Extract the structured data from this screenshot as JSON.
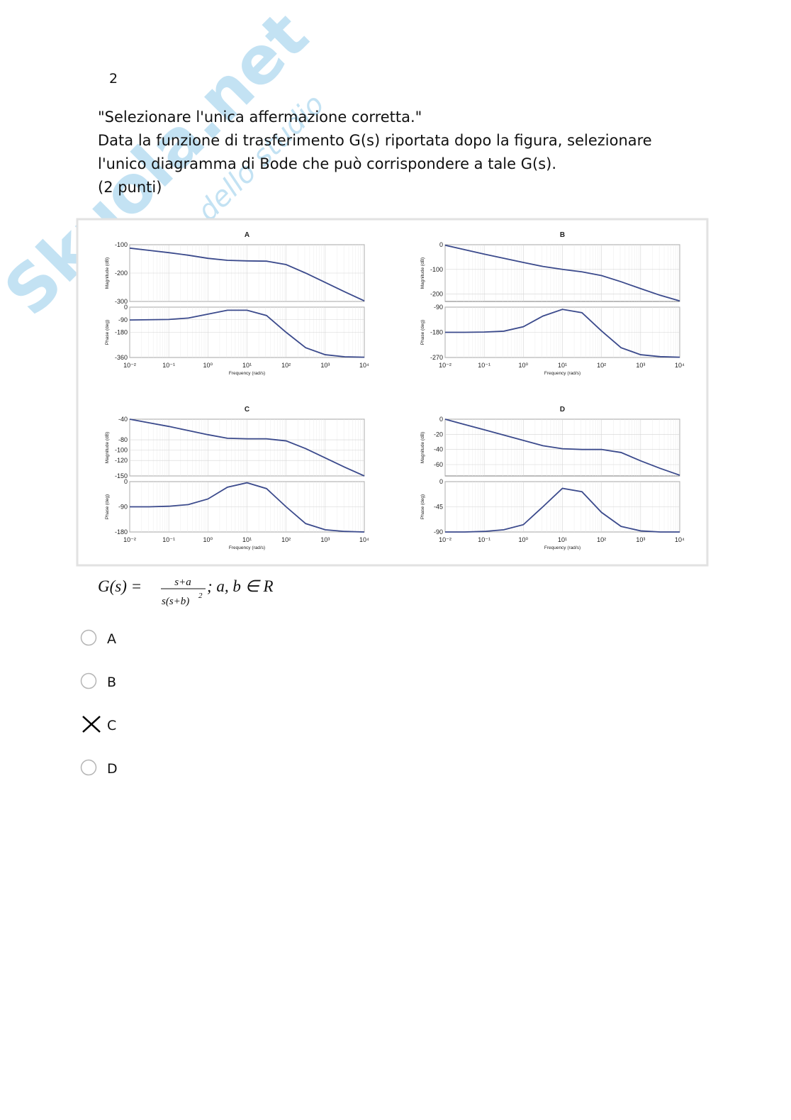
{
  "page_number": "2",
  "question": {
    "lines": [
      "\"Selezionare l'unica affermazione corretta.\"",
      "Data la funzione di trasferimento G(s) riportata dopo la figura, selezionare",
      "l'unico diagramma di Bode che può corrispondere a tale G(s).",
      "(2 punti)"
    ]
  },
  "watermark": {
    "brand": "Skuola.net",
    "tagline": "il paradiso dello studio"
  },
  "chart_data": [
    {
      "type": "line",
      "title": "A",
      "ylabel": "Magnitude (dB)",
      "xscale": "log",
      "xlim": [
        0.01,
        10000
      ],
      "x": [
        0.01,
        0.0316,
        0.1,
        0.316,
        1,
        3.16,
        10,
        31.6,
        100,
        316,
        1000,
        3162,
        10000
      ],
      "ylim": [
        -300,
        -100
      ],
      "yticks": [
        -100,
        -200,
        -300
      ],
      "grid": true,
      "series": [
        {
          "color": "#3b4a8c",
          "values": [
            -112,
            -120,
            -128,
            -137,
            -148,
            -155,
            -157,
            -158,
            -170,
            -200,
            -233,
            -266,
            -298
          ]
        }
      ]
    },
    {
      "type": "line",
      "ylabel": "Phase (deg)",
      "xlabel": "Frequency (rad/s)",
      "xscale": "log",
      "xlim": [
        0.01,
        10000
      ],
      "x": [
        0.01,
        0.0316,
        0.1,
        0.316,
        1,
        3.16,
        10,
        31.6,
        100,
        316,
        1000,
        3162,
        10000
      ],
      "xticks": [
        {
          "value": 0.01,
          "label": "10⁻²"
        },
        {
          "value": 0.1,
          "label": "10⁻¹"
        },
        {
          "value": 1,
          "label": "10⁰"
        },
        {
          "value": 10,
          "label": "10¹"
        },
        {
          "value": 100,
          "label": "10²"
        },
        {
          "value": 1000,
          "label": "10³"
        },
        {
          "value": 10000,
          "label": "10⁴"
        }
      ],
      "ylim": [
        -360,
        0
      ],
      "yticks": [
        0,
        -90,
        -180,
        -360
      ],
      "grid": true,
      "series": [
        {
          "color": "#3b4a8c",
          "values": [
            -92,
            -90,
            -88,
            -78,
            -50,
            -22,
            -22,
            -60,
            -180,
            -290,
            -340,
            -355,
            -358
          ]
        }
      ]
    },
    {
      "type": "line",
      "title": "B",
      "ylabel": "Magnitude (dB)",
      "xscale": "log",
      "xlim": [
        0.01,
        10000
      ],
      "x": [
        0.01,
        0.0316,
        0.1,
        0.316,
        1,
        3.16,
        10,
        31.6,
        100,
        316,
        1000,
        3162,
        10000
      ],
      "ylim": [
        -230,
        0
      ],
      "yticks": [
        0,
        -100,
        -200
      ],
      "grid": true,
      "series": [
        {
          "color": "#3b4a8c",
          "values": [
            -2,
            -20,
            -38,
            -55,
            -72,
            -88,
            -100,
            -110,
            -125,
            -150,
            -178,
            -205,
            -228
          ]
        }
      ]
    },
    {
      "type": "line",
      "ylabel": "Phase (deg)",
      "xlabel": "Frequency (rad/s)",
      "xscale": "log",
      "xlim": [
        0.01,
        10000
      ],
      "x": [
        0.01,
        0.0316,
        0.1,
        0.316,
        1,
        3.16,
        10,
        31.6,
        100,
        316,
        1000,
        3162,
        10000
      ],
      "xticks": [
        {
          "value": 0.01,
          "label": "10⁻²"
        },
        {
          "value": 0.1,
          "label": "10⁻¹"
        },
        {
          "value": 1,
          "label": "10⁰"
        },
        {
          "value": 10,
          "label": "10¹"
        },
        {
          "value": 100,
          "label": "10²"
        },
        {
          "value": 1000,
          "label": "10³"
        },
        {
          "value": 10000,
          "label": "10⁴"
        }
      ],
      "ylim": [
        -270,
        -90
      ],
      "yticks": [
        -90,
        -180,
        -270
      ],
      "grid": true,
      "series": [
        {
          "color": "#3b4a8c",
          "values": [
            -180,
            -180,
            -179,
            -176,
            -160,
            -122,
            -98,
            -110,
            -175,
            -235,
            -260,
            -267,
            -269
          ]
        }
      ]
    },
    {
      "type": "line",
      "title": "C",
      "ylabel": "Magnitude (dB)",
      "xscale": "log",
      "xlim": [
        0.01,
        10000
      ],
      "x": [
        0.01,
        0.0316,
        0.1,
        0.316,
        1,
        3.16,
        10,
        31.6,
        100,
        316,
        1000,
        3162,
        10000
      ],
      "ylim": [
        -150,
        -40
      ],
      "yticks": [
        -40,
        -80,
        -100,
        -120,
        -150
      ],
      "grid": true,
      "series": [
        {
          "color": "#3b4a8c",
          "values": [
            -40,
            -47,
            -54,
            -62,
            -70,
            -77,
            -78,
            -78,
            -82,
            -97,
            -115,
            -133,
            -150
          ]
        }
      ]
    },
    {
      "type": "line",
      "ylabel": "Phase (deg)",
      "xlabel": "Frequency (rad/s)",
      "xscale": "log",
      "xlim": [
        0.01,
        10000
      ],
      "x": [
        0.01,
        0.0316,
        0.1,
        0.316,
        1,
        3.16,
        10,
        31.6,
        100,
        316,
        1000,
        3162,
        10000
      ],
      "xticks": [
        {
          "value": 0.01,
          "label": "10⁻²"
        },
        {
          "value": 0.1,
          "label": "10⁻¹"
        },
        {
          "value": 1,
          "label": "10⁰"
        },
        {
          "value": 10,
          "label": "10¹"
        },
        {
          "value": 100,
          "label": "10²"
        },
        {
          "value": 1000,
          "label": "10³"
        },
        {
          "value": 10000,
          "label": "10⁴"
        }
      ],
      "ylim": [
        -180,
        0
      ],
      "yticks": [
        0,
        -90,
        -180
      ],
      "grid": true,
      "series": [
        {
          "color": "#3b4a8c",
          "values": [
            -90,
            -90,
            -88,
            -82,
            -62,
            -20,
            -4,
            -25,
            -90,
            -150,
            -172,
            -178,
            -180
          ]
        }
      ]
    },
    {
      "type": "line",
      "title": "D",
      "ylabel": "Magnitude (dB)",
      "xscale": "log",
      "xlim": [
        0.01,
        10000
      ],
      "x": [
        0.01,
        0.0316,
        0.1,
        0.316,
        1,
        3.16,
        10,
        31.6,
        100,
        316,
        1000,
        3162,
        10000
      ],
      "ylim": [
        -75,
        0
      ],
      "yticks": [
        0,
        -20,
        -40,
        -60
      ],
      "grid": true,
      "series": [
        {
          "color": "#3b4a8c",
          "values": [
            0,
            -7,
            -14,
            -21,
            -28,
            -35,
            -39,
            -40,
            -40,
            -44,
            -55,
            -65,
            -74
          ]
        }
      ]
    },
    {
      "type": "line",
      "ylabel": "Phase (deg)",
      "xlabel": "Frequency (rad/s)",
      "xscale": "log",
      "xlim": [
        0.01,
        10000
      ],
      "x": [
        0.01,
        0.0316,
        0.1,
        0.316,
        1,
        3.16,
        10,
        31.6,
        100,
        316,
        1000,
        3162,
        10000
      ],
      "xticks": [
        {
          "value": 0.01,
          "label": "10⁻²"
        },
        {
          "value": 0.1,
          "label": "10⁻¹"
        },
        {
          "value": 1,
          "label": "10⁰"
        },
        {
          "value": 10,
          "label": "10¹"
        },
        {
          "value": 100,
          "label": "10²"
        },
        {
          "value": 1000,
          "label": "10³"
        },
        {
          "value": 10000,
          "label": "10⁴"
        }
      ],
      "ylim": [
        -90,
        0
      ],
      "yticks": [
        0,
        -45,
        -90
      ],
      "grid": true,
      "series": [
        {
          "color": "#3b4a8c",
          "values": [
            -90,
            -90,
            -89,
            -86,
            -77,
            -45,
            -12,
            -18,
            -55,
            -80,
            -88,
            -90,
            -90
          ]
        }
      ]
    }
  ],
  "formula": {
    "lhs": "G(s) =",
    "numerator": "s+a",
    "denominator": "s(s+b)",
    "exponent": "2",
    "tail": "; a, b ∈ R"
  },
  "options": [
    {
      "label": "A",
      "selected": false
    },
    {
      "label": "B",
      "selected": false
    },
    {
      "label": "C",
      "selected": true
    },
    {
      "label": "D",
      "selected": false
    }
  ]
}
